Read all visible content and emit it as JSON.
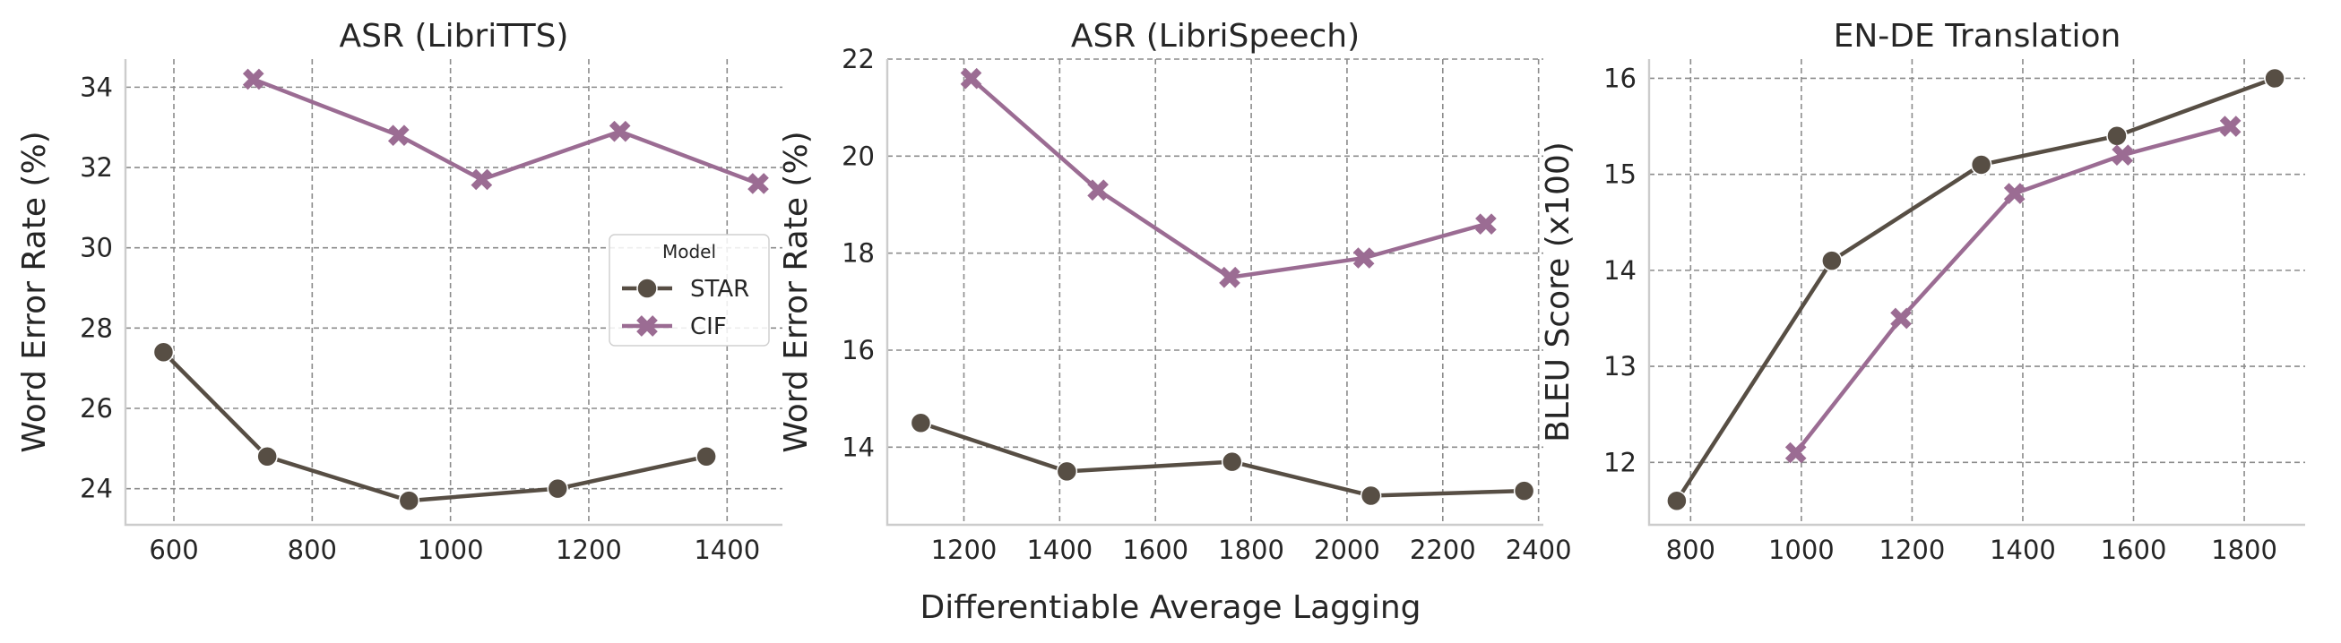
{
  "figure": {
    "xlabel": "Differentiable Average Lagging"
  },
  "legend": {
    "title": "Model",
    "entries": [
      {
        "name": "STAR",
        "marker": "circle",
        "color": "#574e44"
      },
      {
        "name": "CIF",
        "marker": "x",
        "color": "#9b6c93"
      }
    ]
  },
  "chart_data": [
    {
      "type": "line",
      "title": "ASR (LibriTTS)",
      "ylabel": "Word Error Rate (%)",
      "xlim": [
        530,
        1480
      ],
      "ylim": [
        23.1,
        34.7
      ],
      "xticks": [
        600,
        800,
        1000,
        1200,
        1400
      ],
      "yticks": [
        24,
        26,
        28,
        30,
        32,
        34
      ],
      "grid": true,
      "legend_position": "center-right",
      "series": [
        {
          "name": "STAR",
          "color": "#574e44",
          "marker": "circle",
          "x": [
            585,
            735,
            940,
            1155,
            1370
          ],
          "y": [
            27.4,
            24.8,
            23.7,
            24.0,
            24.8
          ]
        },
        {
          "name": "CIF",
          "color": "#9b6c93",
          "marker": "x",
          "x": [
            715,
            925,
            1045,
            1245,
            1445
          ],
          "y": [
            34.2,
            32.8,
            31.7,
            32.9,
            31.6
          ]
        }
      ]
    },
    {
      "type": "line",
      "title": "ASR (LibriSpeech)",
      "ylabel": "Word Error Rate (%)",
      "xlim": [
        1040,
        2410
      ],
      "ylim": [
        12.4,
        22.0
      ],
      "xticks": [
        1200,
        1400,
        1600,
        1800,
        2000,
        2200,
        2400
      ],
      "yticks": [
        14,
        16,
        18,
        20,
        22
      ],
      "grid": true,
      "series": [
        {
          "name": "STAR",
          "color": "#574e44",
          "marker": "circle",
          "x": [
            1110,
            1415,
            1760,
            2050,
            2370
          ],
          "y": [
            14.5,
            13.5,
            13.7,
            13.0,
            13.1
          ]
        },
        {
          "name": "CIF",
          "color": "#9b6c93",
          "marker": "x",
          "x": [
            1215,
            1480,
            1755,
            2035,
            2290
          ],
          "y": [
            21.6,
            19.3,
            17.5,
            17.9,
            18.6
          ]
        }
      ]
    },
    {
      "type": "line",
      "title": "EN-DE Translation",
      "ylabel": "BLEU Score (x100)",
      "xlim": [
        725,
        1910
      ],
      "ylim": [
        11.35,
        16.2
      ],
      "xticks": [
        800,
        1000,
        1200,
        1400,
        1600,
        1800
      ],
      "yticks": [
        12,
        13,
        14,
        15,
        16
      ],
      "grid": true,
      "series": [
        {
          "name": "STAR",
          "color": "#574e44",
          "marker": "circle",
          "x": [
            775,
            1055,
            1325,
            1570,
            1855
          ],
          "y": [
            11.6,
            14.1,
            15.1,
            15.4,
            16.0
          ]
        },
        {
          "name": "CIF",
          "color": "#9b6c93",
          "marker": "x",
          "x": [
            990,
            1180,
            1385,
            1580,
            1775
          ],
          "y": [
            12.1,
            13.5,
            14.8,
            15.2,
            15.5
          ]
        }
      ]
    }
  ]
}
